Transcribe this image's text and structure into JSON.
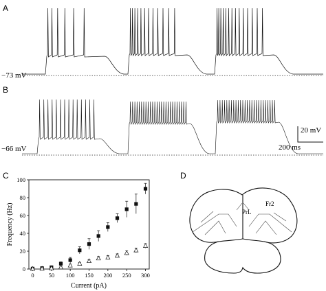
{
  "figure": {
    "panels": {
      "a": {
        "letter": "A",
        "resting_label": "−73 mV"
      },
      "b": {
        "letter": "B",
        "resting_label": "−66 mV",
        "scale_voltage": "20 mV",
        "scale_time": "200 ms"
      },
      "c": {
        "letter": "C"
      },
      "d": {
        "letter": "D",
        "region_labels": [
          "PrL",
          "Fr2"
        ]
      }
    }
  },
  "chart_data": {
    "type": "scatter",
    "xlabel": "Current (pA)",
    "ylabel": "Frequency (Hz)",
    "xlim": [
      -10,
      310
    ],
    "ylim": [
      0,
      100
    ],
    "xticks": [
      0,
      50,
      100,
      150,
      200,
      250,
      300
    ],
    "yticks": [
      0,
      20,
      40,
      60,
      80,
      100
    ],
    "grid": false,
    "series": [
      {
        "marker": "filled-square",
        "x": [
          0,
          25,
          50,
          75,
          100,
          125,
          150,
          175,
          200,
          225,
          250,
          275,
          300
        ],
        "y": [
          0.5,
          1,
          2,
          6,
          10,
          21,
          28,
          37,
          47,
          57,
          67,
          73,
          90
        ],
        "err": [
          1,
          1,
          1.5,
          2,
          3,
          4,
          6,
          6,
          5,
          5,
          9,
          11,
          6
        ]
      },
      {
        "marker": "open-triangle",
        "x": [
          0,
          25,
          50,
          75,
          100,
          125,
          150,
          175,
          200,
          225,
          250,
          275,
          300
        ],
        "y": [
          0.3,
          0.5,
          1,
          2,
          4,
          6,
          9,
          12,
          13,
          15,
          18,
          21,
          26
        ],
        "err": [
          0.5,
          0.5,
          0.5,
          1,
          1.5,
          1.5,
          1.5,
          2,
          2,
          2,
          2.5,
          2.5,
          2.5
        ]
      }
    ]
  }
}
